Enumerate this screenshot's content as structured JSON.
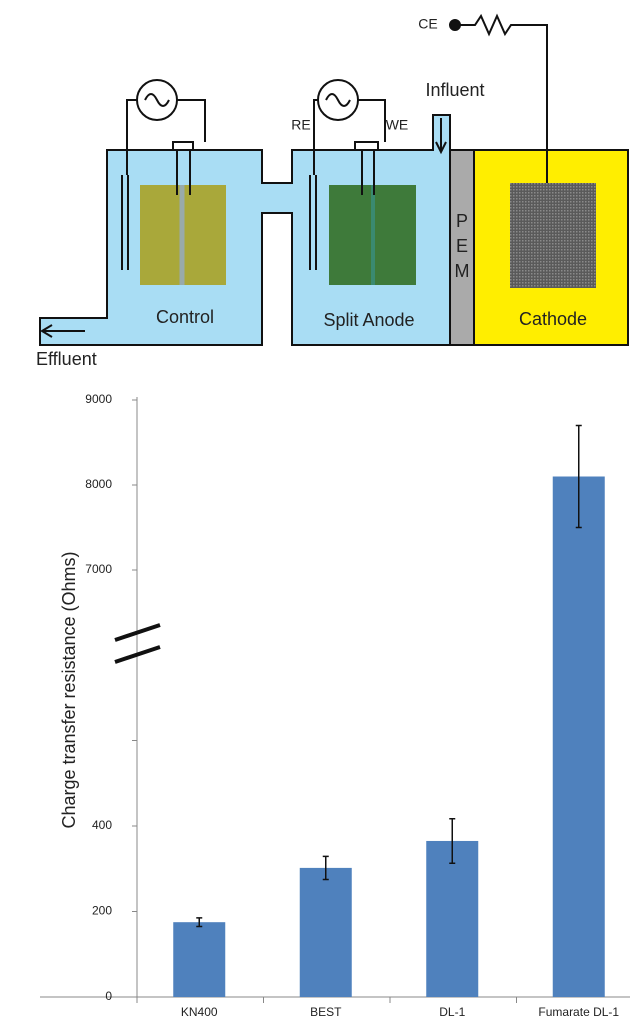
{
  "diagram": {
    "labels": {
      "ce": "CE",
      "influent": "Influent",
      "re": "RE",
      "we": "WE",
      "control": "Control",
      "split_anode": "Split Anode",
      "pem": [
        "P",
        "E",
        "M"
      ],
      "cathode": "Cathode",
      "effluent": "Effluent"
    }
  },
  "chart_data": {
    "type": "bar",
    "ylabel": "Charge transfer resistance (Ohms)",
    "categories": [
      "KN400",
      "BEST",
      "DL-1",
      "Fumarate DL-1"
    ],
    "values": [
      175,
      302,
      365,
      8100
    ],
    "errors": [
      10,
      27,
      52,
      600
    ],
    "color": "#4f81bd",
    "y_break": {
      "lower": {
        "ylim": [
          0,
          800
        ],
        "yticks": [
          0,
          200,
          400
        ],
        "minor_yticks": [
          600
        ]
      },
      "upper": {
        "ylim": [
          6200,
          9000
        ],
        "yticks": [
          7000,
          8000,
          9000
        ]
      }
    }
  }
}
